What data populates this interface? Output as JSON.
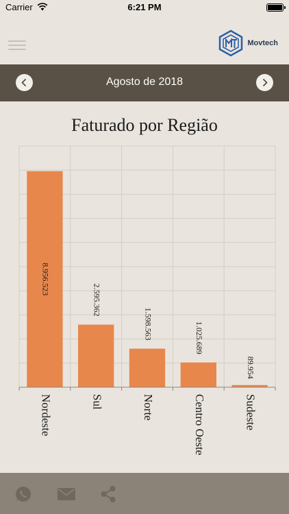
{
  "status_bar": {
    "carrier": "Carrier",
    "time": "6:21 PM"
  },
  "header": {
    "logo_text": "Movtech"
  },
  "month_nav": {
    "label": "Agosto de 2018"
  },
  "chart_data": {
    "type": "bar",
    "title": "Faturado por Região",
    "categories": [
      "Nordeste",
      "Sul",
      "Norte",
      "Centro Oeste",
      "Sudeste"
    ],
    "values": [
      8956523,
      2595362,
      1598563,
      1025689,
      89954
    ],
    "value_labels": [
      "8.956.523",
      "2.595.362",
      "1.598.563",
      "1.025.689",
      "89.954"
    ],
    "ylim": [
      0,
      10000000
    ],
    "grid": true,
    "bar_color": "#e8874b"
  },
  "colors": {
    "month_bar": "#595145",
    "footer": "#8b8377",
    "background": "#e9e5de"
  },
  "footer": {
    "icons": [
      "whatsapp-icon",
      "mail-icon",
      "share-icon"
    ]
  }
}
